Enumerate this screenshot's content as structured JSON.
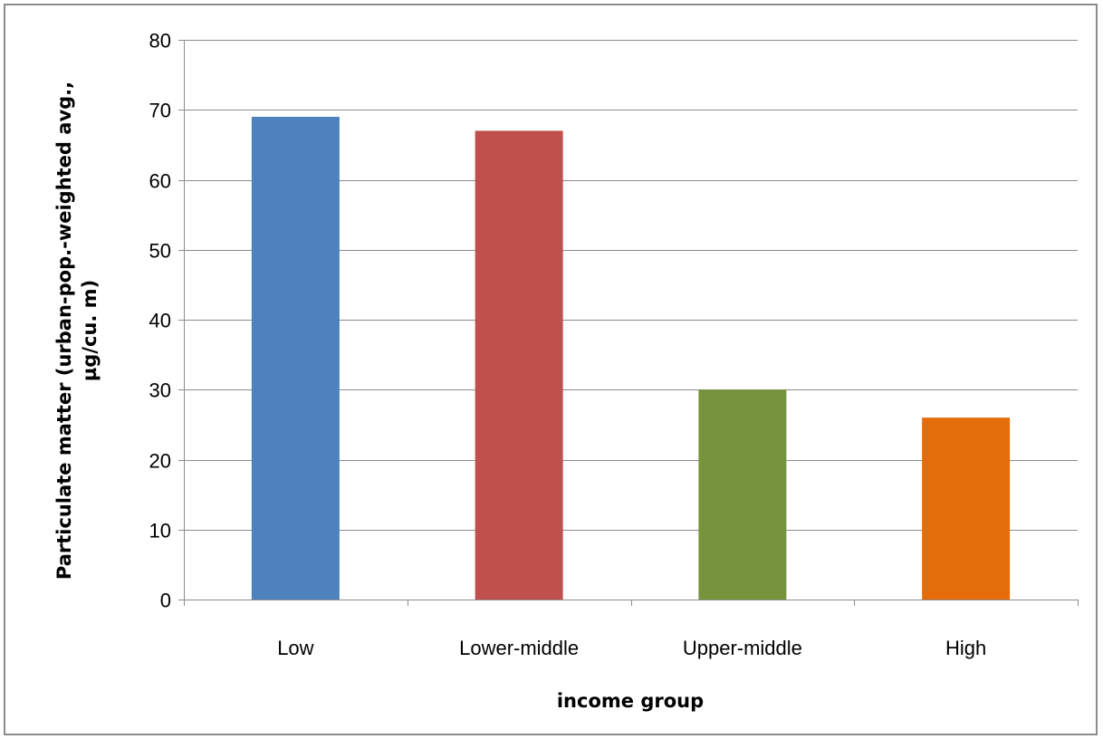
{
  "chart_data": {
    "type": "bar",
    "title": "",
    "xlabel": "income group",
    "ylabel": "Particulate matter (urban-pop.-weighted avg., µg/cu. m)",
    "ylabel_lines": [
      "Particulate matter (urban-pop.-weighted avg.,",
      "µg/cu. m)"
    ],
    "categories": [
      "Low",
      "Lower-middle",
      "Upper-middle",
      "High"
    ],
    "values": [
      69,
      67,
      30,
      26
    ],
    "bar_colors": [
      "#4f81bd",
      "#c0504d",
      "#77933c",
      "#e46c0a"
    ],
    "ylim": [
      0,
      80
    ],
    "yticks": [
      0,
      10,
      20,
      30,
      40,
      50,
      60,
      70,
      80
    ],
    "grid": true,
    "legend": "none"
  }
}
